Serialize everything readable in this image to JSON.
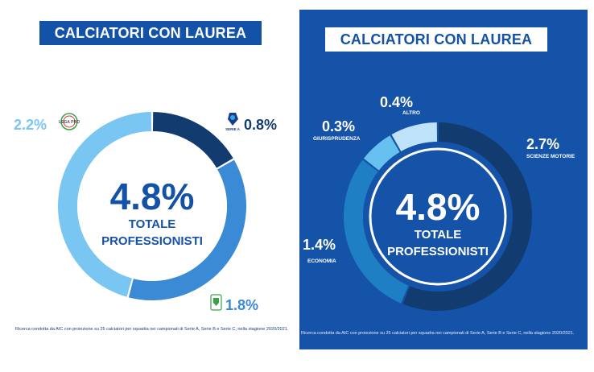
{
  "colors": {
    "brand_blue": "#1452a8",
    "dark_navy": "#123c70",
    "mid_blue": "#3a8ad6",
    "light_blue": "#79c6f2",
    "panel_blue": "#1553a8"
  },
  "left_panel": {
    "title": "CALCIATORI CON LAUREA",
    "center_value": "4.8%",
    "center_label_1": "TOTALE",
    "center_label_2": "PROFESSIONISTI",
    "note": "Ricerca condotta da AIC con proiezione su 25 calciatori per squadra nei campionati di Serie A, Serie B e Serie C, nella stagione 2020/2021."
  },
  "right_panel": {
    "title": "CALCIATORI CON LAUREA",
    "center_value": "4.8%",
    "center_label_1": "TOTALE",
    "center_label_2": "PROFESSIONISTI",
    "note": "Ricerca condotta da AIC con proiezione su 25 calciatori per squadra nei campionati di Serie A, Serie B e Serie C, nella stagione 2020/2021."
  },
  "chart_data": [
    {
      "type": "pie",
      "variant": "donut",
      "title": "CALCIATORI CON LAUREA",
      "center_text": "4.8% TOTALE PROFESSIONISTI",
      "categories": [
        "Serie A",
        "Serie BKT",
        "Lega Pro"
      ],
      "values": [
        0.8,
        1.8,
        2.2
      ],
      "labels": [
        "0.8%",
        "1.8%",
        "2.2%"
      ],
      "logo_texts": [
        "SERIE A",
        "LEGA PRO"
      ],
      "colors": [
        "#123c70",
        "#3a8ad6",
        "#79c6f2"
      ],
      "total": 4.8
    },
    {
      "type": "pie",
      "variant": "donut",
      "title": "CALCIATORI CON LAUREA",
      "center_text": "4.8% TOTALE PROFESSIONISTI",
      "categories": [
        "SCIENZE MOTORIE",
        "ECONOMIA",
        "GIURISPRUDENZA",
        "ALTRO"
      ],
      "values": [
        2.7,
        1.4,
        0.3,
        0.4
      ],
      "labels": [
        "2.7%",
        "1.4%",
        "0.3%",
        "0.4%"
      ],
      "colors": [
        "#123c70",
        "#1e7fc4",
        "#66c1f0",
        "#bfe3fa"
      ],
      "total": 4.8
    }
  ]
}
